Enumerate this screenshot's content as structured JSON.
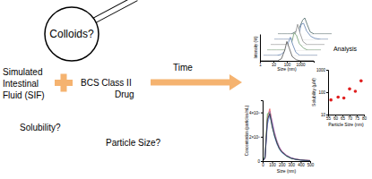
{
  "diagram": {
    "colloids": "Colloids?",
    "sif": [
      "Simulated",
      "Intestinal",
      "Fluid (SIF)"
    ],
    "drug": [
      "BCS Class II",
      "Drug"
    ],
    "solubility_question": "Solubility?",
    "particle_size_question": "Particle Size?",
    "time": "Time",
    "analysis": "Analysis"
  },
  "chart_data": [
    {
      "type": "line",
      "xlabel": "Size (nm)",
      "ylabel": "Intensity (%)",
      "log": "x",
      "x": [
        1,
        2,
        5,
        10,
        20,
        40,
        70,
        100,
        150,
        250,
        500,
        1000,
        3000,
        10000
      ],
      "xlim": [
        1,
        10000
      ],
      "xticks": [
        1,
        10,
        100,
        1000
      ],
      "ylim": [
        0,
        25
      ],
      "tick_labels": "x",
      "series": [
        {
          "color": "#333333",
          "values": [
            0,
            0,
            0,
            0,
            0,
            2,
            10,
            18,
            12,
            4,
            1,
            0,
            0,
            0
          ]
        },
        {
          "color": "#4a6fa5",
          "values": [
            0,
            0,
            0,
            0,
            1,
            4,
            12,
            17,
            10,
            3,
            0,
            0,
            0,
            0
          ]
        },
        {
          "color": "#5b8f5b",
          "values": [
            0,
            0,
            0,
            0,
            0,
            1,
            8,
            16,
            14,
            6,
            2,
            0,
            0,
            0
          ]
        },
        {
          "color": "#7a7a7a",
          "values": [
            0,
            0,
            0,
            0,
            0,
            3,
            11,
            19,
            11,
            3,
            0,
            0,
            0,
            0
          ]
        },
        {
          "color": "#4a6fa5",
          "values": [
            0,
            0,
            0,
            0,
            0,
            0,
            5,
            14,
            15,
            8,
            3,
            1,
            0,
            0
          ]
        },
        {
          "color": "#2f4f4f",
          "values": [
            0,
            0,
            0,
            0,
            2,
            6,
            13,
            15,
            9,
            2,
            0,
            0,
            0,
            0
          ]
        }
      ]
    },
    {
      "type": "line",
      "xlabel": "Size (nm)",
      "ylabel": "Concentration (particles/mL)",
      "x": [
        0,
        25,
        50,
        75,
        100,
        125,
        150,
        175,
        200,
        250,
        300,
        350,
        400,
        450,
        500
      ],
      "xlim": [
        0,
        500
      ],
      "xticks": [
        0,
        100,
        200,
        300,
        400,
        500
      ],
      "ylim": [
        0,
        500000000.0
      ],
      "yticks": [
        0,
        {
          "value": 200000000.0,
          "label": "2×10⁸"
        },
        {
          "value": 400000000.0,
          "label": "4×10⁸"
        }
      ],
      "series": [
        {
          "color": "#e8413c",
          "values": [
            0,
            30000000.0,
            360000000.0,
            430000000.0,
            310000000.0,
            220000000.0,
            150000000.0,
            110000000.0,
            80000000.0,
            45000000.0,
            25000000.0,
            15000000.0,
            10000000.0,
            6000000.0,
            4000000.0
          ]
        },
        {
          "color": "#3cb44b",
          "values": [
            0,
            40000000.0,
            390000000.0,
            400000000.0,
            290000000.0,
            210000000.0,
            160000000.0,
            100000000.0,
            75000000.0,
            40000000.0,
            22000000.0,
            14000000.0,
            9000000.0,
            5000000.0,
            3000000.0
          ]
        },
        {
          "color": "#9b59b6",
          "values": [
            0,
            20000000.0,
            330000000.0,
            410000000.0,
            330000000.0,
            240000000.0,
            170000000.0,
            120000000.0,
            85000000.0,
            50000000.0,
            28000000.0,
            17000000.0,
            11000000.0,
            7000000.0,
            5000000.0
          ]
        },
        {
          "color": "#3a6fd8",
          "values": [
            0,
            30000000.0,
            300000000.0,
            380000000.0,
            300000000.0,
            200000000.0,
            140000000.0,
            100000000.0,
            70000000.0,
            42000000.0,
            24000000.0,
            13000000.0,
            8000000.0,
            5000000.0,
            3000000.0
          ]
        },
        {
          "color": "#222222",
          "values": [
            0,
            25000000.0,
            340000000.0,
            390000000.0,
            280000000.0,
            210000000.0,
            150000000.0,
            105000000.0,
            78000000.0,
            44000000.0,
            23000000.0,
            14000000.0,
            9000000.0,
            6000000.0,
            4000000.0
          ]
        }
      ]
    },
    {
      "type": "scatter",
      "xlabel": "Particle Size (nm)",
      "ylabel": "Solubility (µM)",
      "log": "y",
      "x": [
        57,
        62,
        66,
        70,
        74,
        78
      ],
      "values": [
        45,
        60,
        55,
        140,
        110,
        320
      ],
      "xlim": [
        55,
        80
      ],
      "xticks": [
        55,
        60,
        65,
        70,
        75,
        80
      ],
      "ylim": [
        10,
        1000
      ],
      "yticks": [
        10,
        100,
        1000
      ],
      "color": "#e02020",
      "marker": "circle"
    }
  ]
}
